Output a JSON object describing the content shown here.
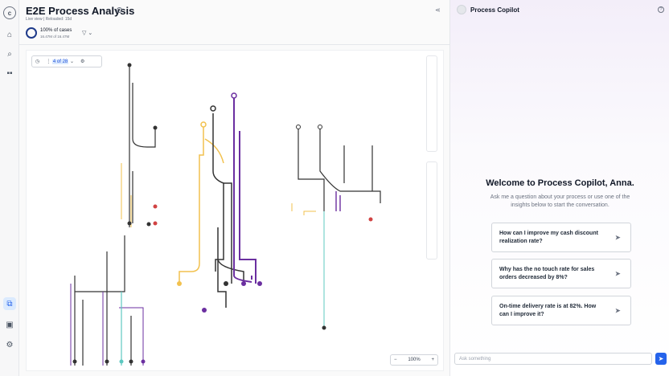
{
  "rail": {
    "logo": "c",
    "icons": [
      "home-icon",
      "search-icon",
      "apps-icon",
      "process-icon",
      "archive-icon",
      "settings-icon"
    ]
  },
  "header": {
    "title": "E2E Process Analysis",
    "subtitle": "Live view  |  Reloaded:  15d",
    "cases_title": "100% of cases",
    "cases_sub": "16.47M of 16.47M",
    "filter_label": "▽ ⌄"
  },
  "toolbar": {
    "variant_label": "4 of 28"
  },
  "zoom": {
    "level": "100%"
  },
  "copilot": {
    "title": "Process Copilot",
    "welcome": "Welcome to Process Copilot, Anna.",
    "welcome_sub": "Ask me a question about your process or use one of the insights below to start the conversation.",
    "suggestions": [
      {
        "text": "How can I improve my cash discount realization rate?"
      },
      {
        "text": "Why has the no touch rate for sales orders decreased by 8%?"
      },
      {
        "text": "On-time delivery rate is at 82%. How can I improve it?"
      }
    ],
    "ask_placeholder": "Ask something"
  },
  "colors": {
    "accent": "#2563eb",
    "yellow": "#f2c14e",
    "purple": "#6b2fa0",
    "teal": "#5cc8c0",
    "red": "#d14343"
  }
}
